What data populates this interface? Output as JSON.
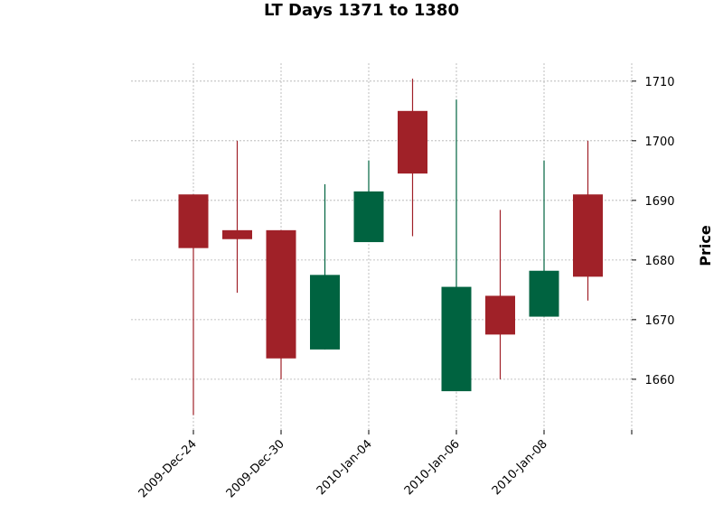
{
  "chart_data": {
    "type": "candlestick",
    "title": "LT Days 1371 to 1380",
    "ylabel": "Price",
    "xlabel": "",
    "ylim": [
      1651.5,
      1713
    ],
    "yticks": [
      1660,
      1670,
      1680,
      1690,
      1700,
      1710
    ],
    "y_axis_side": "right",
    "grid": true,
    "colors": {
      "up": "#006340",
      "down": "#a02128"
    },
    "xtick_labels": [
      {
        "index": 0,
        "label": "2009-Dec-24"
      },
      {
        "index": 2,
        "label": "2009-Dec-30"
      },
      {
        "index": 4,
        "label": "2010-Jan-04"
      },
      {
        "index": 6,
        "label": "2010-Jan-06"
      },
      {
        "index": 8,
        "label": "2010-Jan-08"
      },
      {
        "index": 10,
        "label": ""
      }
    ],
    "candles": [
      {
        "open": 1691.0,
        "high": 1691.0,
        "low": 1654.0,
        "close": 1682.0
      },
      {
        "open": 1685.0,
        "high": 1700.0,
        "low": 1674.5,
        "close": 1683.5
      },
      {
        "open": 1685.0,
        "high": 1685.0,
        "low": 1660.0,
        "close": 1663.5
      },
      {
        "open": 1665.0,
        "high": 1692.7,
        "low": 1665.0,
        "close": 1677.5
      },
      {
        "open": 1683.0,
        "high": 1696.7,
        "low": 1683.0,
        "close": 1691.5
      },
      {
        "open": 1705.0,
        "high": 1710.4,
        "low": 1684.0,
        "close": 1694.5
      },
      {
        "open": 1658.0,
        "high": 1706.9,
        "low": 1658.0,
        "close": 1675.5
      },
      {
        "open": 1674.0,
        "high": 1688.4,
        "low": 1660.0,
        "close": 1667.5
      },
      {
        "open": 1670.5,
        "high": 1696.7,
        "low": 1670.5,
        "close": 1678.2
      },
      {
        "open": 1691.0,
        "high": 1700.0,
        "low": 1673.2,
        "close": 1677.2
      }
    ]
  }
}
